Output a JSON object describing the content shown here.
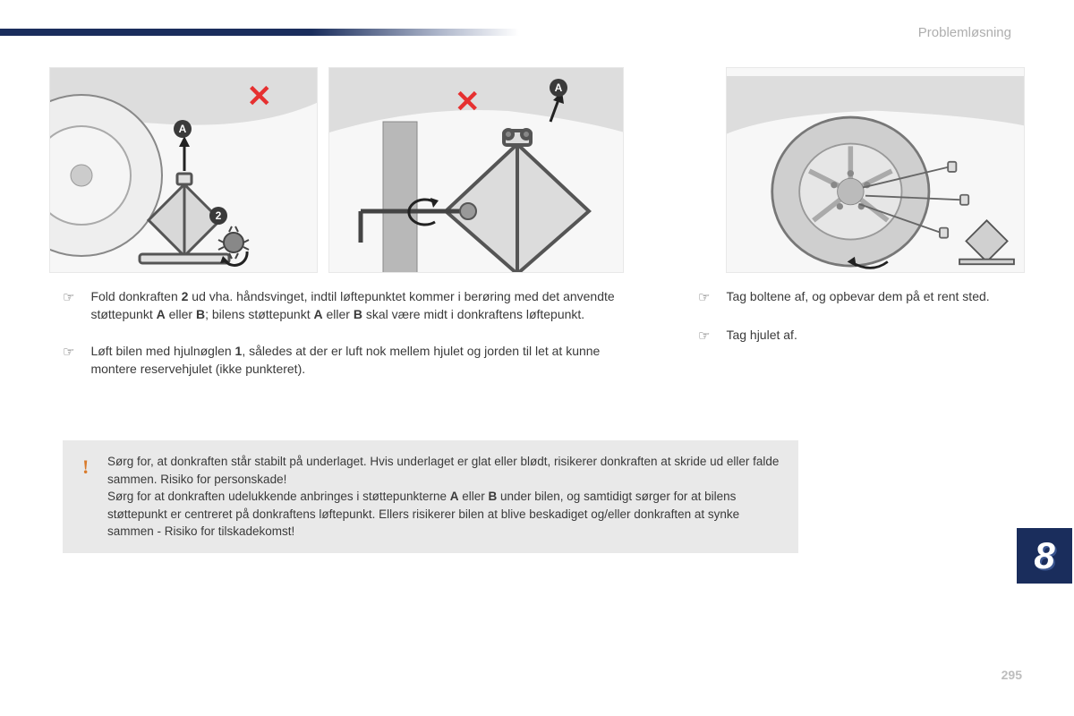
{
  "header": {
    "section_title": "Problemløsning"
  },
  "illustrations": {
    "panel1": {
      "x_mark": "✕",
      "label_A": "A",
      "label_2": "2"
    },
    "panel2": {
      "x_mark": "✕",
      "label_A": "A"
    }
  },
  "instructions_left": [
    {
      "bullet": "☞",
      "html": "Fold donkraften <b>2</b> ud vha. håndsvinget, indtil løftepunktet kommer i berøring med det anvendte støttepunkt <b>A</b> eller <b>B</b>; bilens støttepunkt <b>A</b> eller <b>B</b> skal være midt i donkraftens løftepunkt."
    },
    {
      "bullet": "☞",
      "html": "Løft bilen med hjulnøglen <b>1</b>, således at der er luft nok mellem hjulet og jorden til let at kunne montere reservehjulet (ikke punkteret)."
    }
  ],
  "instructions_right": [
    {
      "bullet": "☞",
      "text": "Tag boltene af, og opbevar dem på et rent sted."
    },
    {
      "bullet": "☞",
      "text": "Tag hjulet af."
    }
  ],
  "warning": {
    "icon": "!",
    "html": "Sørg for, at donkraften står stabilt på underlaget. Hvis underlaget er glat eller blødt, risikerer donkraften at skride ud eller falde sammen. Risiko for personskade!<br>Sørg for at donkraften udelukkende anbringes i støttepunkterne <b>A</b> eller <b>B</b> under bilen, og samtidigt sørger for at bilens støttepunkt er centreret på donkraftens løftepunkt. Ellers risikerer bilen at blive beskadiget og/eller donkraften at synke sammen - Risiko for tilskadekomst!"
  },
  "chapter": {
    "number": "8"
  },
  "page": {
    "number": "295"
  },
  "colors": {
    "brand_navy": "#1a2d5c",
    "text_gray": "#3a3a3a",
    "muted_gray": "#aeaeae",
    "warning_bg": "#e9e9e9",
    "warning_icon": "#d97a2a",
    "red_x": "#e63030"
  }
}
